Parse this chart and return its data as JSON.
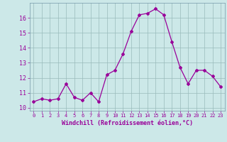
{
  "x": [
    0,
    1,
    2,
    3,
    4,
    5,
    6,
    7,
    8,
    9,
    10,
    11,
    12,
    13,
    14,
    15,
    16,
    17,
    18,
    19,
    20,
    21,
    22,
    23
  ],
  "y": [
    10.4,
    10.6,
    10.5,
    10.6,
    11.6,
    10.7,
    10.5,
    11.0,
    10.4,
    12.2,
    12.5,
    13.6,
    15.1,
    16.2,
    16.3,
    16.6,
    16.2,
    14.4,
    12.7,
    11.6,
    12.5,
    12.5,
    12.1,
    11.4
  ],
  "line_color": "#990099",
  "marker": "D",
  "marker_size": 2.0,
  "bg_color": "#cce8e8",
  "grid_color": "#99bbbb",
  "xlabel": "Windchill (Refroidissement éolien,°C)",
  "xlabel_color": "#990099",
  "tick_color": "#990099",
  "label_color": "#990099",
  "ylim": [
    9.8,
    17.0
  ],
  "yticks": [
    10,
    11,
    12,
    13,
    14,
    15,
    16
  ],
  "xlim": [
    -0.5,
    23.5
  ],
  "spine_color": "#7799aa"
}
